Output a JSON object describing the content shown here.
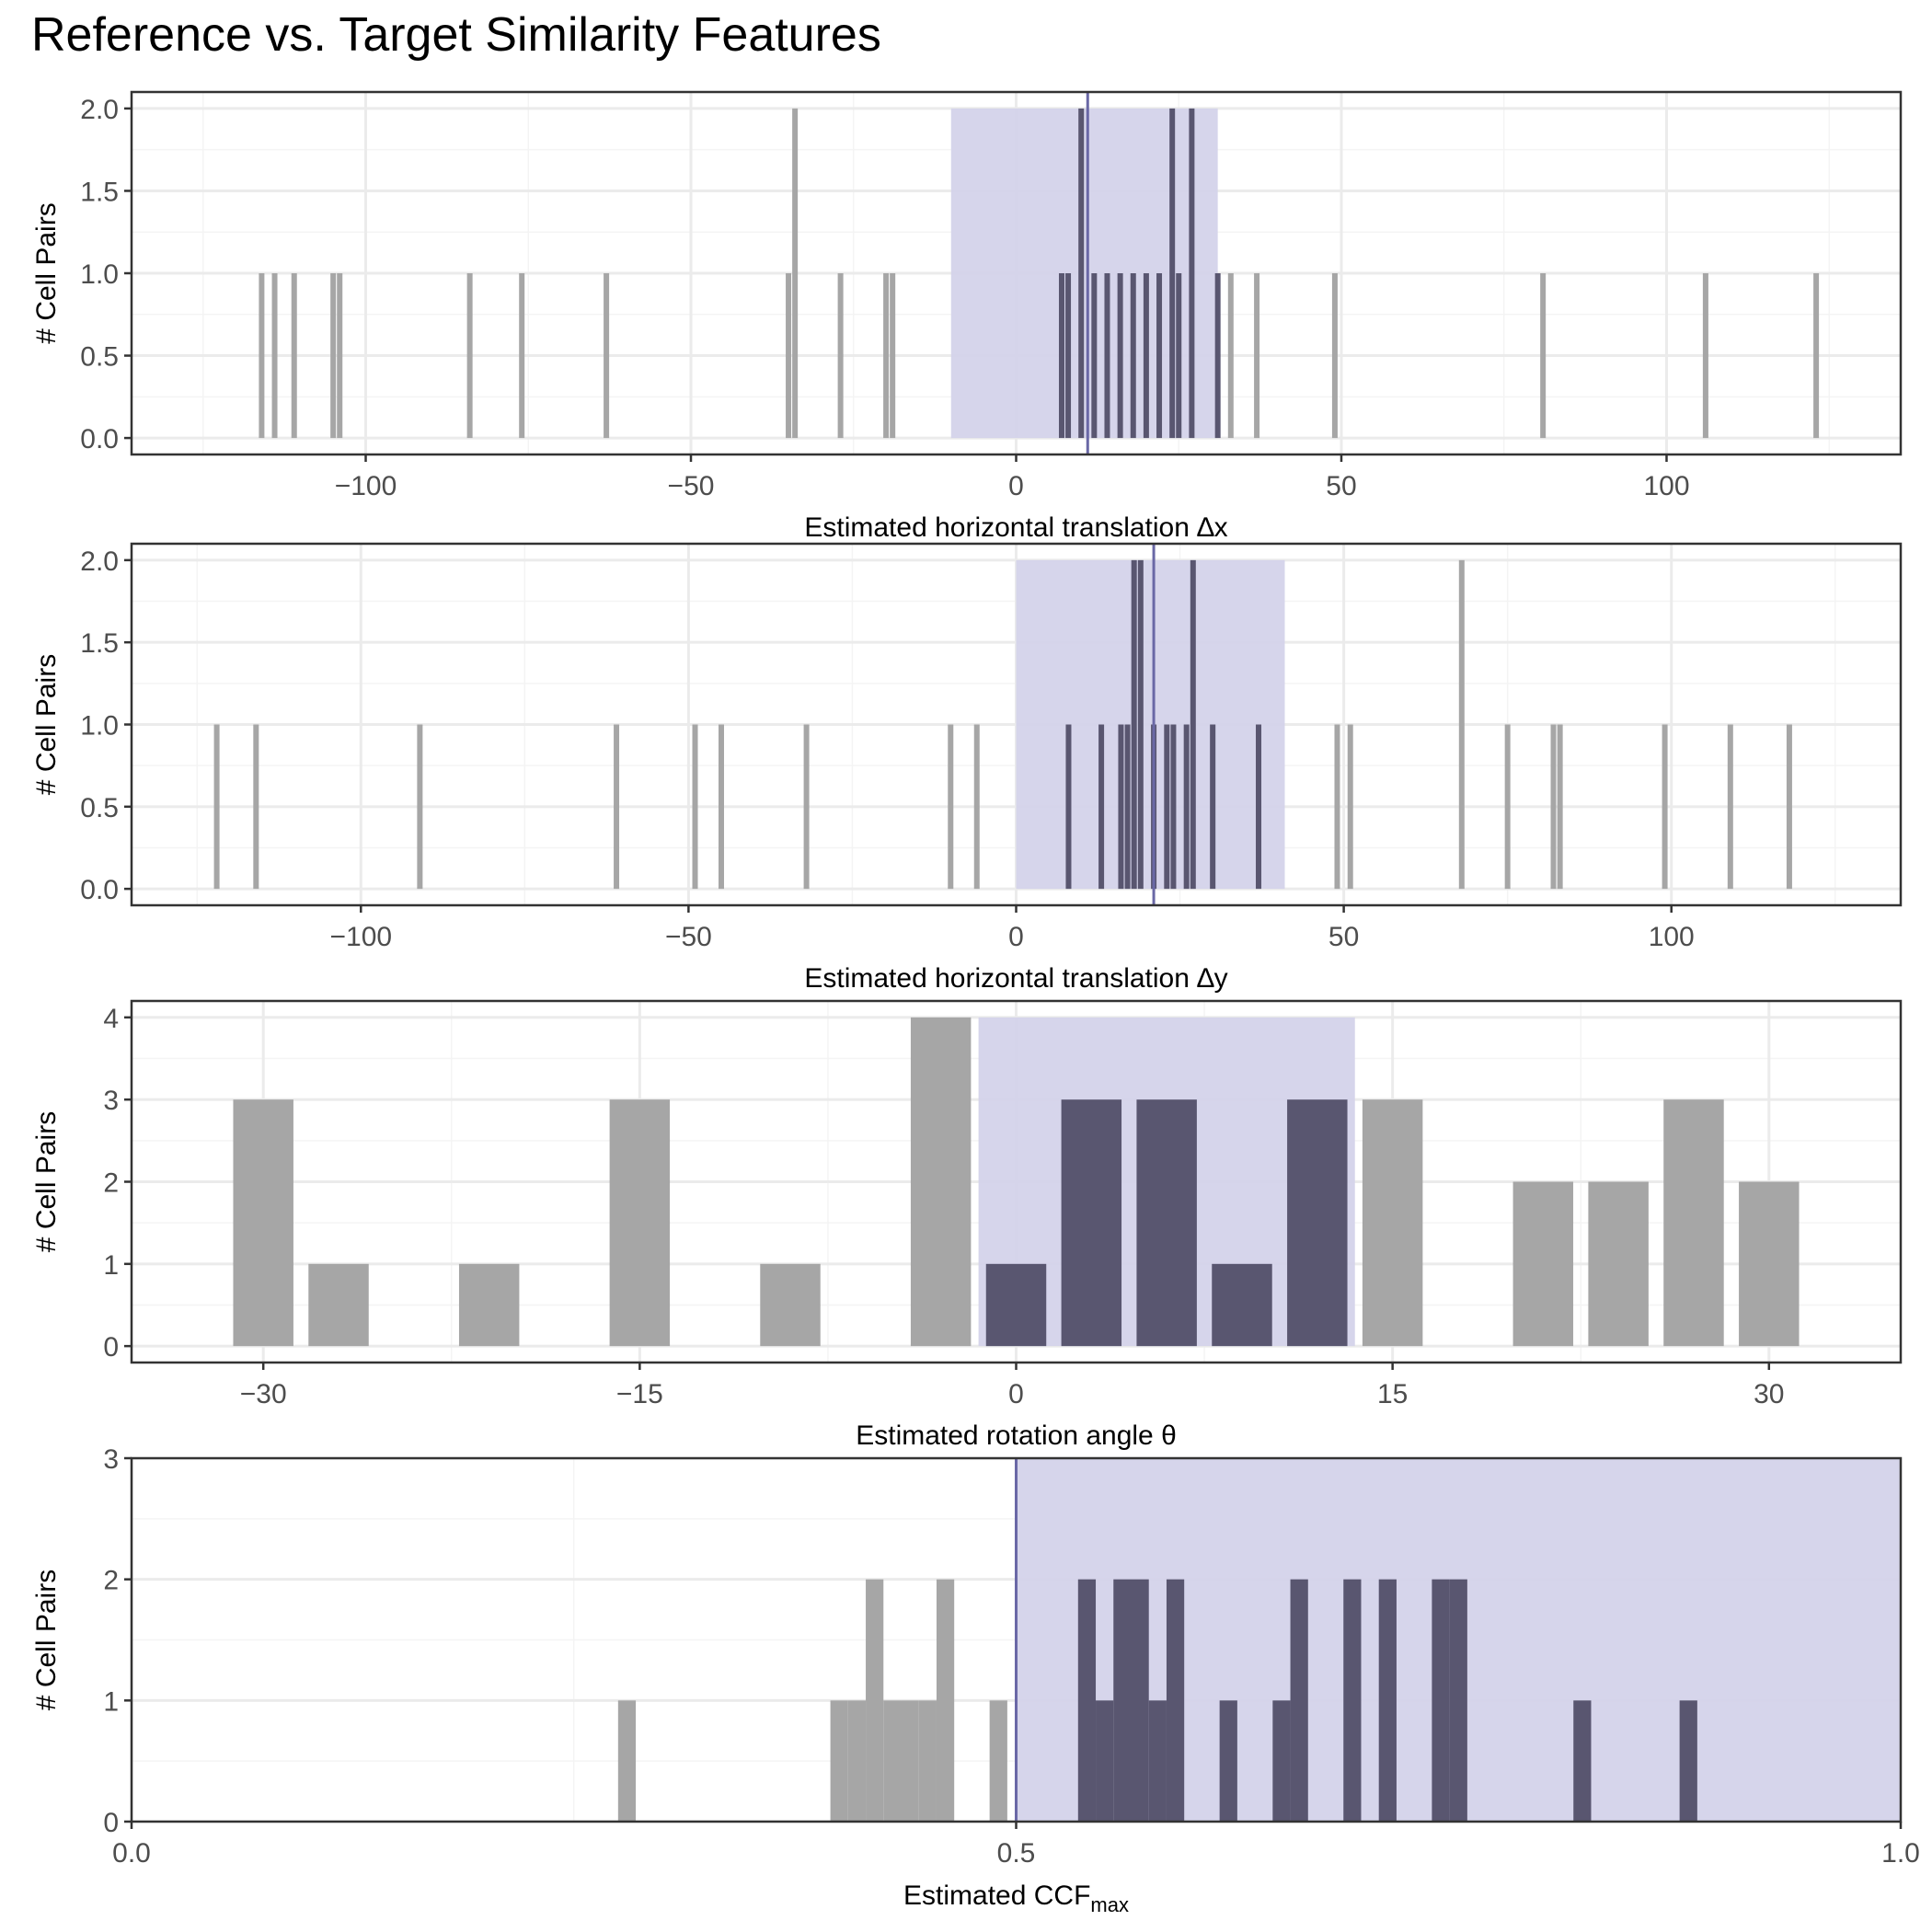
{
  "page": {
    "title": "Reference vs. Target Similarity Features"
  },
  "chart_data": [
    {
      "type": "bar",
      "panel": "dx",
      "xlabel": "Estimated horizontal translation ∆x",
      "ylabel": "# Cell Pairs",
      "xlim": [
        -136,
        136
      ],
      "ylim": [
        -0.1,
        2.1
      ],
      "xticks": [
        -100,
        -50,
        0,
        50,
        100
      ],
      "yticks": [
        0.0,
        0.5,
        1.0,
        1.5,
        2.0
      ],
      "ytick_labels": [
        "0.0",
        "0.5",
        "1.0",
        "1.5",
        "2.0"
      ],
      "bin_width": 1,
      "bins": [
        {
          "x": -116,
          "count": 1
        },
        {
          "x": -114,
          "count": 1
        },
        {
          "x": -111,
          "count": 1
        },
        {
          "x": -105,
          "count": 1
        },
        {
          "x": -104,
          "count": 1
        },
        {
          "x": -84,
          "count": 1
        },
        {
          "x": -76,
          "count": 1
        },
        {
          "x": -63,
          "count": 1
        },
        {
          "x": -35,
          "count": 1
        },
        {
          "x": -34,
          "count": 2
        },
        {
          "x": -27,
          "count": 1
        },
        {
          "x": -20,
          "count": 1
        },
        {
          "x": -19,
          "count": 1
        },
        {
          "x": 7,
          "count": 1
        },
        {
          "x": 8,
          "count": 1
        },
        {
          "x": 10,
          "count": 2
        },
        {
          "x": 12,
          "count": 1
        },
        {
          "x": 14,
          "count": 1
        },
        {
          "x": 16,
          "count": 1
        },
        {
          "x": 18,
          "count": 1
        },
        {
          "x": 20,
          "count": 1
        },
        {
          "x": 22,
          "count": 1
        },
        {
          "x": 24,
          "count": 2
        },
        {
          "x": 25,
          "count": 1
        },
        {
          "x": 27,
          "count": 2
        },
        {
          "x": 31,
          "count": 1
        },
        {
          "x": 33,
          "count": 1
        },
        {
          "x": 37,
          "count": 1
        },
        {
          "x": 49,
          "count": 1
        },
        {
          "x": 81,
          "count": 1
        },
        {
          "x": 106,
          "count": 1
        },
        {
          "x": 123,
          "count": 1
        }
      ],
      "highlight_range": [
        -10,
        31
      ],
      "reference_line": 11
    },
    {
      "type": "bar",
      "panel": "dy",
      "xlabel": "Estimated horizontal translation ∆y",
      "ylabel": "# Cell Pairs",
      "xlim": [
        -135,
        135
      ],
      "ylim": [
        -0.1,
        2.1
      ],
      "xticks": [
        -100,
        -50,
        0,
        50,
        100
      ],
      "yticks": [
        0.0,
        0.5,
        1.0,
        1.5,
        2.0
      ],
      "ytick_labels": [
        "0.0",
        "0.5",
        "1.0",
        "1.5",
        "2.0"
      ],
      "bin_width": 1,
      "bins": [
        {
          "x": -122,
          "count": 1
        },
        {
          "x": -116,
          "count": 1
        },
        {
          "x": -91,
          "count": 1
        },
        {
          "x": -61,
          "count": 1
        },
        {
          "x": -49,
          "count": 1
        },
        {
          "x": -45,
          "count": 1
        },
        {
          "x": -32,
          "count": 1
        },
        {
          "x": -10,
          "count": 1
        },
        {
          "x": -6,
          "count": 1
        },
        {
          "x": 8,
          "count": 1
        },
        {
          "x": 13,
          "count": 1
        },
        {
          "x": 16,
          "count": 1
        },
        {
          "x": 17,
          "count": 1
        },
        {
          "x": 18,
          "count": 2
        },
        {
          "x": 19,
          "count": 2
        },
        {
          "x": 21,
          "count": 1
        },
        {
          "x": 23,
          "count": 1
        },
        {
          "x": 24,
          "count": 1
        },
        {
          "x": 26,
          "count": 1
        },
        {
          "x": 27,
          "count": 2
        },
        {
          "x": 30,
          "count": 1
        },
        {
          "x": 37,
          "count": 1
        },
        {
          "x": 49,
          "count": 1
        },
        {
          "x": 51,
          "count": 1
        },
        {
          "x": 68,
          "count": 2
        },
        {
          "x": 75,
          "count": 1
        },
        {
          "x": 82,
          "count": 1
        },
        {
          "x": 83,
          "count": 1
        },
        {
          "x": 99,
          "count": 1
        },
        {
          "x": 109,
          "count": 1
        },
        {
          "x": 118,
          "count": 1
        }
      ],
      "highlight_range": [
        0,
        41
      ],
      "reference_line": 21
    },
    {
      "type": "bar",
      "panel": "theta",
      "xlabel": "Estimated rotation angle θ",
      "ylabel": "# Cell Pairs",
      "xlim": [
        -35.25,
        35.25
      ],
      "ylim": [
        -0.2,
        4.2
      ],
      "xticks": [
        -30,
        -15,
        0,
        15,
        30
      ],
      "yticks": [
        0,
        1,
        2,
        3,
        4
      ],
      "ytick_labels": [
        "0",
        "1",
        "2",
        "3",
        "4"
      ],
      "bin_width": 3,
      "bins": [
        {
          "x": -30,
          "count": 3
        },
        {
          "x": -27,
          "count": 1
        },
        {
          "x": -21,
          "count": 1
        },
        {
          "x": -15,
          "count": 3
        },
        {
          "x": -9,
          "count": 1
        },
        {
          "x": -3,
          "count": 4
        },
        {
          "x": 0,
          "count": 1
        },
        {
          "x": 3,
          "count": 3
        },
        {
          "x": 6,
          "count": 3
        },
        {
          "x": 9,
          "count": 1
        },
        {
          "x": 12,
          "count": 3
        },
        {
          "x": 15,
          "count": 3
        },
        {
          "x": 21,
          "count": 2
        },
        {
          "x": 24,
          "count": 2
        },
        {
          "x": 27,
          "count": 3
        },
        {
          "x": 30,
          "count": 2
        }
      ],
      "highlight_range": [
        -1.5,
        13.5
      ],
      "reference_line": null
    },
    {
      "type": "bar",
      "panel": "ccf",
      "xlabel": "Estimated CCF",
      "xlabel_subscript": "max",
      "ylabel": "# Cell Pairs",
      "xlim": [
        0,
        1
      ],
      "ylim": [
        0,
        3
      ],
      "xticks": [
        0,
        0.5,
        1
      ],
      "xtick_labels": [
        "0.0",
        "0.5",
        "1.0"
      ],
      "yticks": [
        0,
        1,
        2,
        3
      ],
      "ytick_labels": [
        "0",
        "1",
        "2",
        "3"
      ],
      "bin_width": 0.01,
      "bins": [
        {
          "x": 0.28,
          "count": 1
        },
        {
          "x": 0.4,
          "count": 1
        },
        {
          "x": 0.41,
          "count": 1
        },
        {
          "x": 0.42,
          "count": 2
        },
        {
          "x": 0.43,
          "count": 1
        },
        {
          "x": 0.44,
          "count": 1
        },
        {
          "x": 0.45,
          "count": 1
        },
        {
          "x": 0.46,
          "count": 2
        },
        {
          "x": 0.49,
          "count": 1
        },
        {
          "x": 0.54,
          "count": 2
        },
        {
          "x": 0.55,
          "count": 1
        },
        {
          "x": 0.56,
          "count": 2
        },
        {
          "x": 0.57,
          "count": 2
        },
        {
          "x": 0.58,
          "count": 1
        },
        {
          "x": 0.59,
          "count": 2
        },
        {
          "x": 0.62,
          "count": 1
        },
        {
          "x": 0.65,
          "count": 1
        },
        {
          "x": 0.66,
          "count": 2
        },
        {
          "x": 0.69,
          "count": 2
        },
        {
          "x": 0.71,
          "count": 2
        },
        {
          "x": 0.74,
          "count": 2
        },
        {
          "x": 0.75,
          "count": 2
        },
        {
          "x": 0.82,
          "count": 1
        },
        {
          "x": 0.88,
          "count": 1
        }
      ],
      "highlight_range": [
        0.5,
        1.0
      ],
      "reference_line": 0.5
    }
  ],
  "colors": {
    "bar_outside": "#a6a6a6",
    "bar_inside": "#595670",
    "highlight": "#d4d3ea",
    "reference_line": "#6a68a6",
    "grid_major": "#ebebeb",
    "grid_minor": "#f4f4f4"
  }
}
